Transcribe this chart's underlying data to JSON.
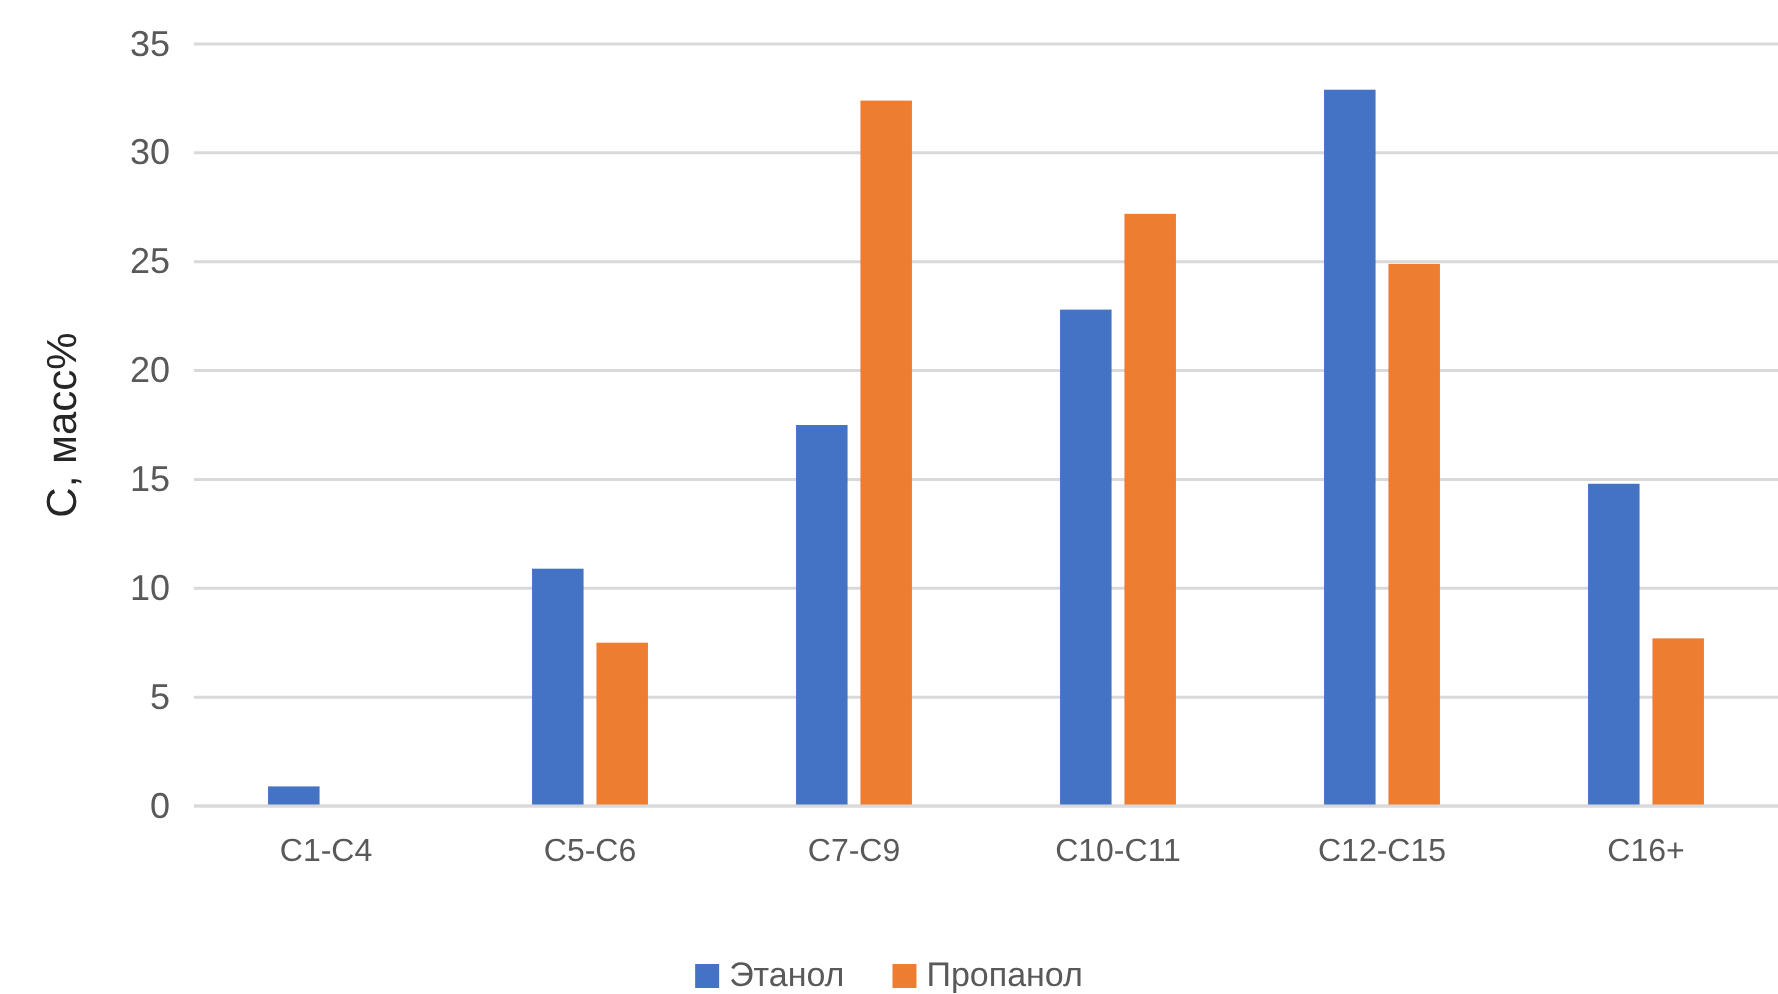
{
  "chart_data": {
    "type": "bar",
    "ylabel": "С, масс%",
    "categories": [
      "C1-C4",
      "C5-C6",
      "C7-C9",
      "C10-C11",
      "C12-C15",
      "C16+"
    ],
    "series": [
      {
        "name": "Этанол",
        "color": "#4472c4",
        "values": [
          0.9,
          10.9,
          17.5,
          22.8,
          32.9,
          14.8
        ]
      },
      {
        "name": "Пропанол",
        "color": "#ed7d31",
        "values": [
          0,
          7.5,
          32.4,
          27.2,
          24.9,
          7.7
        ]
      }
    ],
    "ylim": [
      0,
      35
    ],
    "yticks": [
      0,
      5,
      10,
      15,
      20,
      25,
      30,
      35
    ],
    "grid": "y",
    "legend": "bottom"
  }
}
